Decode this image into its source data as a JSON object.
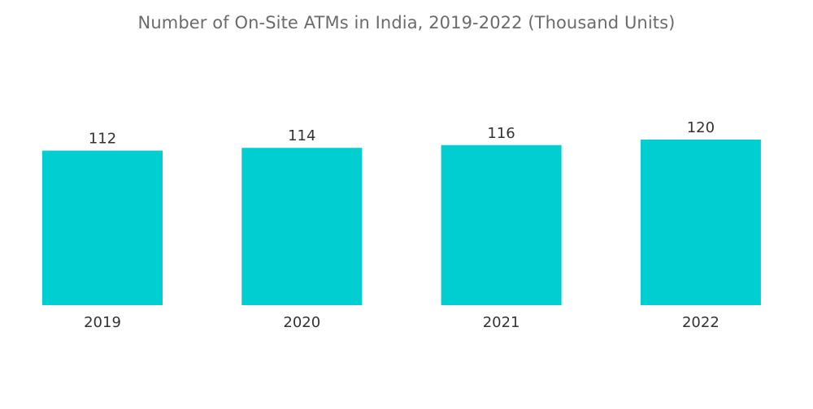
{
  "chart_data": {
    "type": "bar",
    "title": "Number of On-Site ATMs in India, 2019-2022 (Thousand Units)",
    "categories": [
      "2019",
      "2020",
      "2021",
      "2022"
    ],
    "values": [
      112,
      114,
      116,
      120
    ],
    "data_labels": [
      "112",
      "114",
      "116",
      "120"
    ],
    "xlabel": "",
    "ylabel": "",
    "ylim": [
      0,
      120
    ],
    "grid": false,
    "legend": "none",
    "bar_color": "#00CED1"
  }
}
